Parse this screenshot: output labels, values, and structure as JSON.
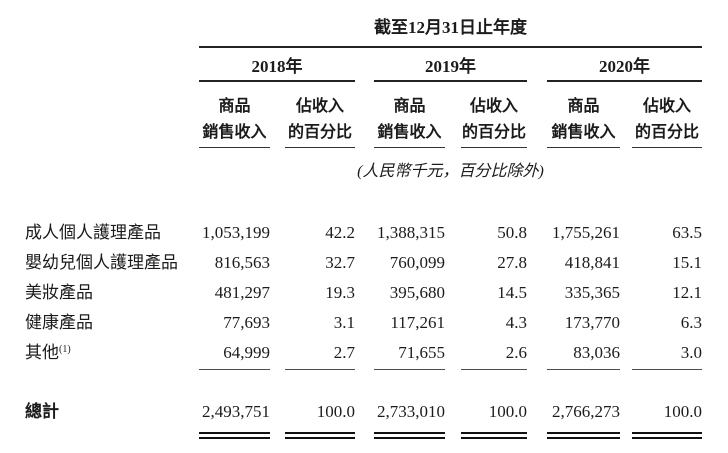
{
  "table": {
    "title": "截至12月31日止年度",
    "unit_note": "(人民幣千元，百分比除外)",
    "year_headers": [
      "2018年",
      "2019年",
      "2020年"
    ],
    "column_headers": {
      "sales_line1": "商品",
      "sales_line2": "銷售收入",
      "pct_line1": "佔收入",
      "pct_line2": "的百分比"
    },
    "rows": [
      {
        "label": "成人個人護理產品",
        "values": [
          "1,053,199",
          "42.2",
          "1,388,315",
          "50.8",
          "1,755,261",
          "63.5"
        ]
      },
      {
        "label": "嬰幼兒個人護理產品",
        "values": [
          "816,563",
          "32.7",
          "760,099",
          "27.8",
          "418,841",
          "15.1"
        ]
      },
      {
        "label": "美妝產品",
        "values": [
          "481,297",
          "19.3",
          "395,680",
          "14.5",
          "335,365",
          "12.1"
        ]
      },
      {
        "label": "健康產品",
        "values": [
          "77,693",
          "3.1",
          "117,261",
          "4.3",
          "173,770",
          "6.3"
        ]
      },
      {
        "label": "其他",
        "footnote": "(1)",
        "values": [
          "64,999",
          "2.7",
          "71,655",
          "2.6",
          "83,036",
          "3.0"
        ]
      }
    ],
    "total_row": {
      "label": "總計",
      "values": [
        "2,493,751",
        "100.0",
        "2,733,010",
        "100.0",
        "2,766,273",
        "100.0"
      ]
    }
  },
  "colors": {
    "text": "#1b1b1b",
    "rule": "#222222",
    "background": "#ffffff"
  }
}
